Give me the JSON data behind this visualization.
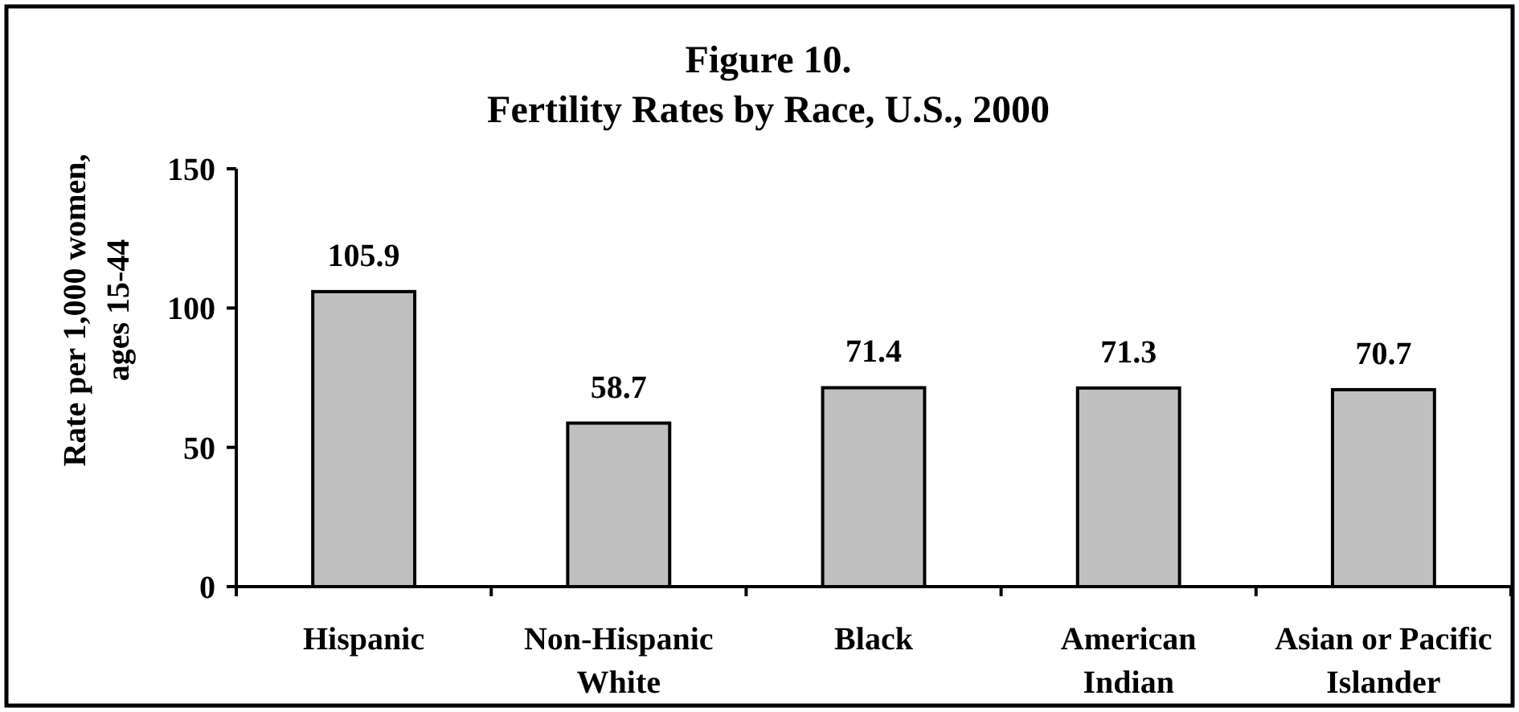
{
  "chart_data": {
    "type": "bar",
    "title": "Figure 10.",
    "subtitle": "Fertility Rates by Race, U.S., 2000",
    "ylabel": "Rate per 1,000 women, ages 15-44",
    "categories": [
      "Hispanic",
      "Non-Hispanic White",
      "Black",
      "American Indian",
      "Asian or Pacific Islander"
    ],
    "values": [
      105.9,
      58.7,
      71.4,
      71.3,
      70.7
    ],
    "color": "#c0c0c0",
    "ylim": [
      0,
      150
    ],
    "yticks": [
      0,
      50,
      100,
      150
    ],
    "grid": false,
    "data_labels": true
  }
}
